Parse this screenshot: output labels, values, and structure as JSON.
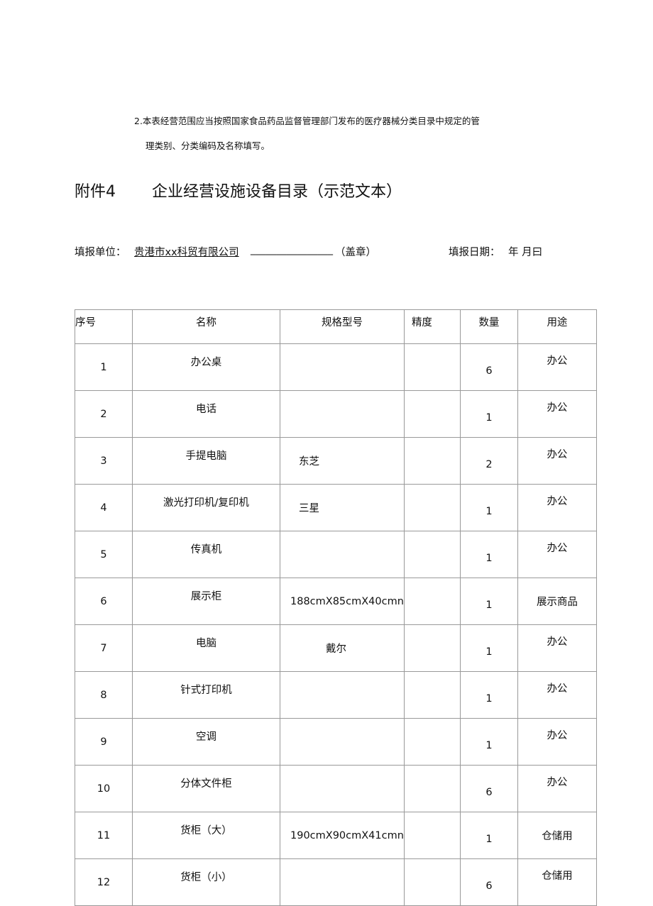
{
  "note": {
    "line1": "2.本表经营范围应当按照国家食品药品监督管理部门发布的医疗器械分类目录中规定的管",
    "line2": "理类别、分类编码及名称填写。"
  },
  "attachment_label": "附件4",
  "title": "企业经营设施设备目录（示范文本）",
  "fill": {
    "unit_label": "填报单位：",
    "unit_value": "贵港市xx科贸有限公司",
    "blank": "________________",
    "seal": "（盖章）",
    "date_label": "填报日期：",
    "date_value": "年 月曰"
  },
  "table": {
    "headers": [
      "序号",
      "名称",
      "规格型号",
      "精度",
      "数量",
      "用途"
    ],
    "rows": [
      [
        "1",
        "办公桌",
        "",
        "",
        "6",
        "办公"
      ],
      [
        "2",
        "电话",
        "",
        "",
        "1",
        "办公"
      ],
      [
        "3",
        "手提电脑",
        "东芝",
        "",
        "2",
        "办公"
      ],
      [
        "4",
        "激光打印机/复印机",
        "三星",
        "",
        "1",
        "办公"
      ],
      [
        "5",
        "传真机",
        "",
        "",
        "1",
        "办公"
      ],
      [
        "6",
        "展示柜",
        "188cmX85cmX40cmn",
        "",
        "1",
        "展示商品"
      ],
      [
        "7",
        "电脑",
        "戴尔",
        "",
        "1",
        "办公"
      ],
      [
        "8",
        "针式打印机",
        "",
        "",
        "1",
        "办公"
      ],
      [
        "9",
        "空调",
        "",
        "",
        "1",
        "办公"
      ],
      [
        "10",
        "分体文件柜",
        "",
        "",
        "6",
        "办公"
      ],
      [
        "11",
        "货柜（大）",
        "190cmX90cmX41cmn",
        "",
        "1",
        "仓储用"
      ],
      [
        "12",
        "货柜（小）",
        "",
        "",
        "6",
        "仓储用"
      ]
    ]
  }
}
